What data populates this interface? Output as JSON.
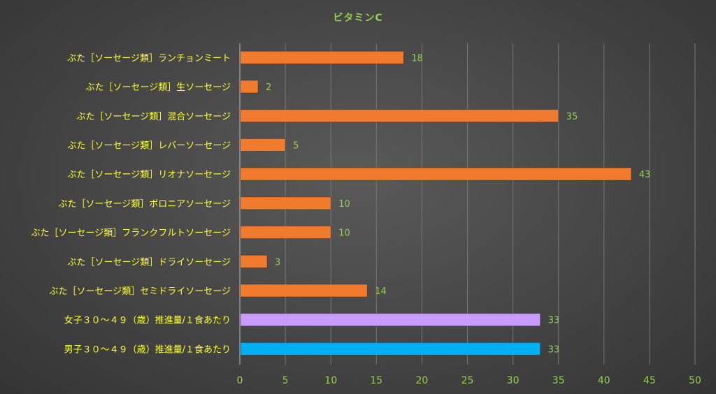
{
  "chart_data": {
    "type": "bar",
    "orientation": "horizontal",
    "title": "ビタミンC",
    "xlabel": "",
    "ylabel": "",
    "xlim": [
      0,
      50
    ],
    "x_ticks": [
      0,
      5,
      10,
      15,
      20,
      25,
      30,
      35,
      40,
      45,
      50
    ],
    "grid": "vertical",
    "data_labels": true,
    "categories": [
      "ぶた［ソーセージ類］ランチョンミート",
      "ぶた［ソーセージ類］生ソーセージ",
      "ぶた［ソーセージ類］混合ソーセージ",
      "ぶた［ソーセージ類］レバーソーセージ",
      "ぶた［ソーセージ類］リオナソーセージ",
      "ぶた［ソーセージ類］ボロニアソーセージ",
      "ぶた［ソーセージ類］フランクフルトソーセージ",
      "ぶた［ソーセージ類］ドライソーセージ",
      "ぶた［ソーセージ類］セミドライソーセージ",
      "女子３０～４９（歳）推進量/１食あたり",
      "男子３０～４９（歳）推進量/１食あたり"
    ],
    "values": [
      18,
      2,
      35,
      5,
      43,
      10,
      10,
      3,
      14,
      33,
      33
    ],
    "bar_colors": [
      "#f07a2e",
      "#f07a2e",
      "#f07a2e",
      "#f07a2e",
      "#f07a2e",
      "#f07a2e",
      "#f07a2e",
      "#f07a2e",
      "#f07a2e",
      "#c89bff",
      "#00aff0"
    ]
  },
  "colors": {
    "label_text": "#ffff33",
    "tick_text": "#92d050",
    "data_label": "#92d050",
    "gridline": "#777777",
    "axis_line": "#bbbbbb"
  }
}
